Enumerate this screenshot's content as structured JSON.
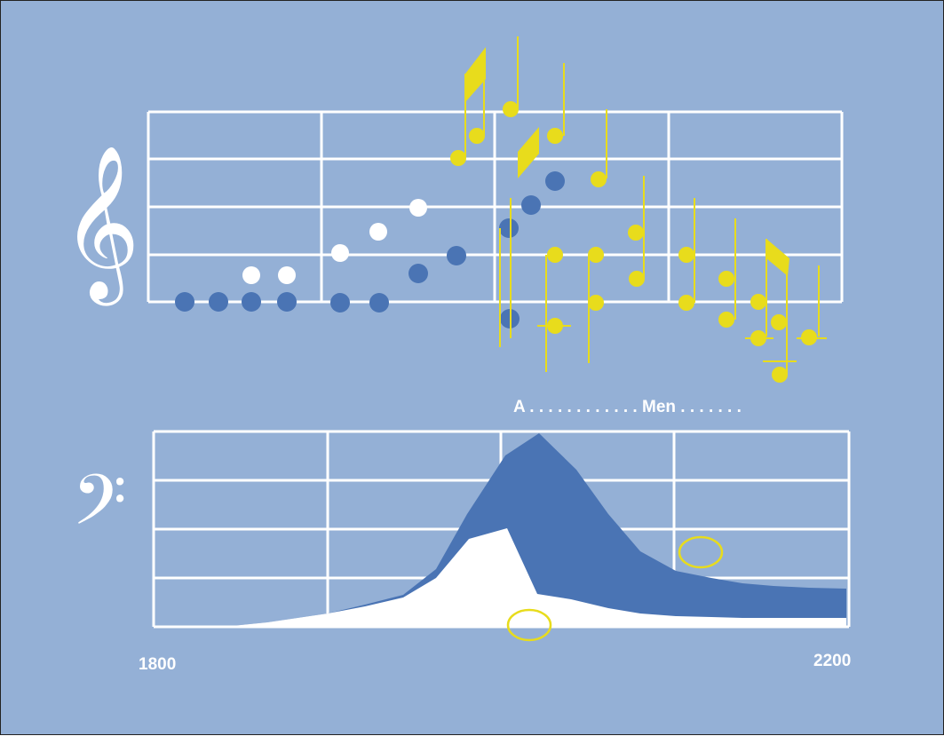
{
  "colors": {
    "background": "#94b0d6",
    "staff_lines": "#ffffff",
    "blue_notes": "#4a74b4",
    "white_notes": "#ffffff",
    "yellow_notes": "#e8dc1c",
    "area_blue": "#4a74b4",
    "area_white": "#ffffff",
    "circle_yellow": "#e8dc1c"
  },
  "icons": {
    "treble": "treble-clef-icon",
    "bass": "bass-clef-icon"
  },
  "clefs": {
    "treble_glyph": "𝄞",
    "bass_glyph": "𝄢"
  },
  "lyrics": {
    "text": "A . . . . . . . . . . . . Men . . . . . . ."
  },
  "axis": {
    "start_label": "1800",
    "end_label": "2200"
  }
}
